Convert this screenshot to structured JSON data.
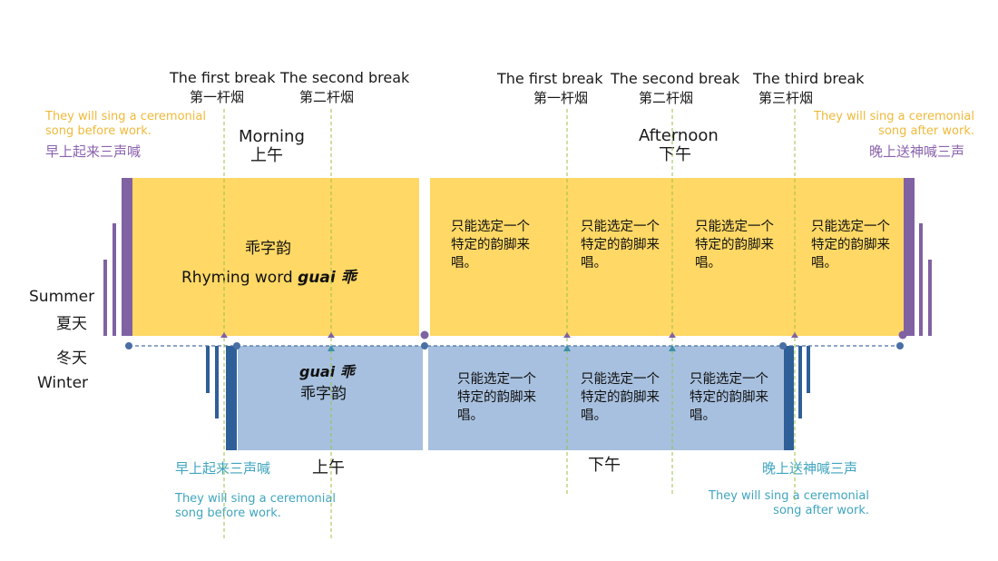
{
  "breaks": {
    "morning_first_en": "The first break",
    "morning_first_cn": "第一杆烟",
    "morning_second_en": "The second break",
    "morning_second_cn": "第二杆烟",
    "afternoon_first_en": "The first break",
    "afternoon_first_cn": "第一杆烟",
    "afternoon_second_en": "The second break",
    "afternoon_second_cn": "第二杆烟",
    "afternoon_third_en": "The third break",
    "afternoon_third_cn": "第三杆烟"
  },
  "summer": {
    "label_en": "Summer",
    "label_cn": "夏天",
    "morning_en": "Morning",
    "morning_cn": "上午",
    "afternoon_en": "Afternoon",
    "afternoon_cn": "下午",
    "start_note_en": "They will sing a ceremonial song before work.",
    "start_note_cn": "早上起来三声喊",
    "end_note_en": "They will sing a ceremonial song after work.",
    "end_note_cn": "晚上送神喊三声",
    "morning_block_cn": "乖字韵",
    "morning_block_en": "Rhyming word",
    "morning_block_rhyme": "guai 乖",
    "segments": [
      "只能选定一个特定的韵脚来唱。",
      "只能选定一个特定的韵脚来唱。",
      "只能选定一个特定的韵脚来唱。",
      "只能选定一个特定的韵脚来唱。"
    ]
  },
  "winter": {
    "label_cn": "冬天",
    "label_en": "Winter",
    "morning_cn": "上午",
    "afternoon_cn": "下午",
    "start_note_cn": "早上起来三声喊",
    "start_note_en": "They will sing a ceremonial song before work.",
    "end_note_cn": "晚上送神喊三声",
    "end_note_en": "They will sing a ceremonial song after work.",
    "morning_block_rhyme": "guai 乖",
    "morning_block_cn": "乖字韵",
    "segments": [
      "只能选定一个特定的韵脚来唱。",
      "只能选定一个特定的韵脚来唱。",
      "只能选定一个特定的韵脚来唱。"
    ]
  },
  "colors": {
    "summer_fill": "#ffd865",
    "winter_fill": "#a7c0df",
    "summer_edge": "#8062a2",
    "winter_edge": "#2f5f98",
    "break_line": "#9ac04a",
    "axis": "#4a6fa5"
  }
}
